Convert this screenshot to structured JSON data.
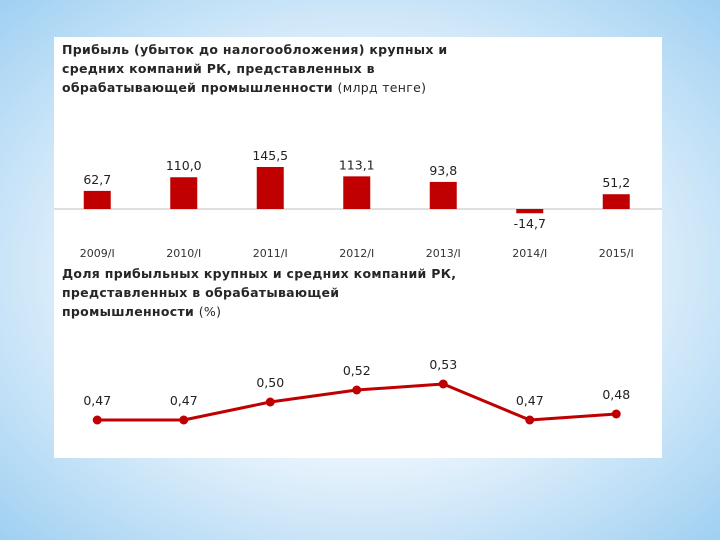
{
  "colors": {
    "series": "#c00000",
    "axis": "#bfbfbf",
    "text": "#262626"
  },
  "chart_data": [
    {
      "type": "bar",
      "title": "Прибыль (убыток до налогообложения) крупных и\nсредних компаний РК, представленных в\nобрабатывающей промышленности",
      "title_unit": "(млрд тенге)",
      "categories": [
        "2009/I",
        "2010/I",
        "2011/I",
        "2012/I",
        "2013/I",
        "2014/I",
        "2015/I"
      ],
      "values": [
        62.7,
        110.0,
        145.5,
        113.1,
        93.8,
        -14.7,
        51.2
      ],
      "value_labels": [
        "62,7",
        "110,0",
        "145,5",
        "113,1",
        "93,8",
        "-14,7",
        "51,2"
      ],
      "ylim": [
        -20,
        150
      ],
      "grid": false
    },
    {
      "type": "line",
      "title": "Доля прибыльных крупных и средних компаний РК,\nпредставленных в обрабатывающей\nпромышленности",
      "title_unit": "(%)",
      "categories": [
        "2009/I",
        "2010/I",
        "2011/I",
        "2012/I",
        "2013/I",
        "2014/I",
        "2015/I"
      ],
      "values": [
        0.47,
        0.47,
        0.5,
        0.52,
        0.53,
        0.47,
        0.48
      ],
      "value_labels": [
        "0,47",
        "0,47",
        "0,50",
        "0,52",
        "0,53",
        "0,47",
        "0,48"
      ],
      "ylim": [
        0.4,
        0.55
      ],
      "grid": false
    }
  ]
}
